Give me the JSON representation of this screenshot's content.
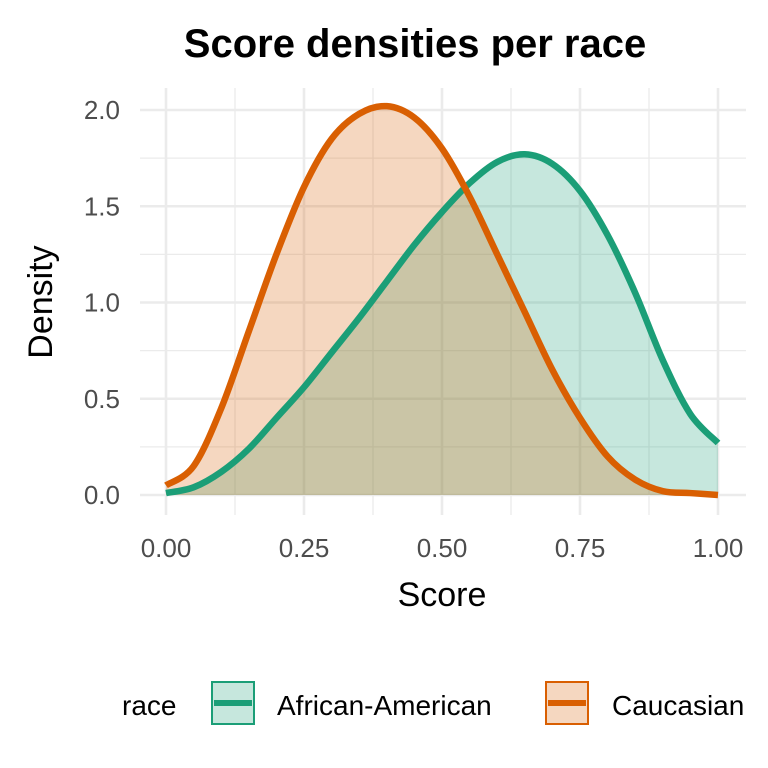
{
  "chart_data": {
    "type": "area",
    "title": "Score densities per race",
    "xlabel": "Score",
    "ylabel": "Density",
    "xlim": [
      0,
      1
    ],
    "ylim": [
      0,
      2.05
    ],
    "x_ticks": [
      "0.00",
      "0.25",
      "0.50",
      "0.75",
      "1.00"
    ],
    "y_ticks": [
      "0.0",
      "0.5",
      "1.0",
      "1.5",
      "2.0"
    ],
    "grid": true,
    "legend": {
      "title": "race",
      "position": "bottom",
      "entries": [
        "African-American",
        "Caucasian"
      ]
    },
    "series": [
      {
        "name": "African-American",
        "line_color": "#1b9e77",
        "fill_color": "#1b9e77",
        "fill_opacity": 0.25,
        "x": [
          0.0,
          0.05,
          0.1,
          0.15,
          0.2,
          0.25,
          0.3,
          0.35,
          0.4,
          0.45,
          0.5,
          0.55,
          0.6,
          0.65,
          0.7,
          0.75,
          0.8,
          0.85,
          0.9,
          0.95,
          1.0
        ],
        "y": [
          0.01,
          0.04,
          0.12,
          0.24,
          0.4,
          0.56,
          0.74,
          0.92,
          1.11,
          1.3,
          1.47,
          1.62,
          1.73,
          1.77,
          1.72,
          1.58,
          1.35,
          1.05,
          0.7,
          0.42,
          0.27
        ]
      },
      {
        "name": "Caucasian",
        "line_color": "#d95f02",
        "fill_color": "#d95f02",
        "fill_opacity": 0.25,
        "x": [
          0.0,
          0.05,
          0.1,
          0.15,
          0.2,
          0.25,
          0.3,
          0.35,
          0.4,
          0.45,
          0.5,
          0.55,
          0.6,
          0.65,
          0.7,
          0.75,
          0.8,
          0.85,
          0.9,
          0.95,
          1.0
        ],
        "y": [
          0.05,
          0.15,
          0.45,
          0.85,
          1.25,
          1.6,
          1.85,
          1.98,
          2.02,
          1.96,
          1.8,
          1.55,
          1.25,
          0.95,
          0.65,
          0.4,
          0.2,
          0.08,
          0.02,
          0.01,
          0.0
        ]
      }
    ]
  }
}
